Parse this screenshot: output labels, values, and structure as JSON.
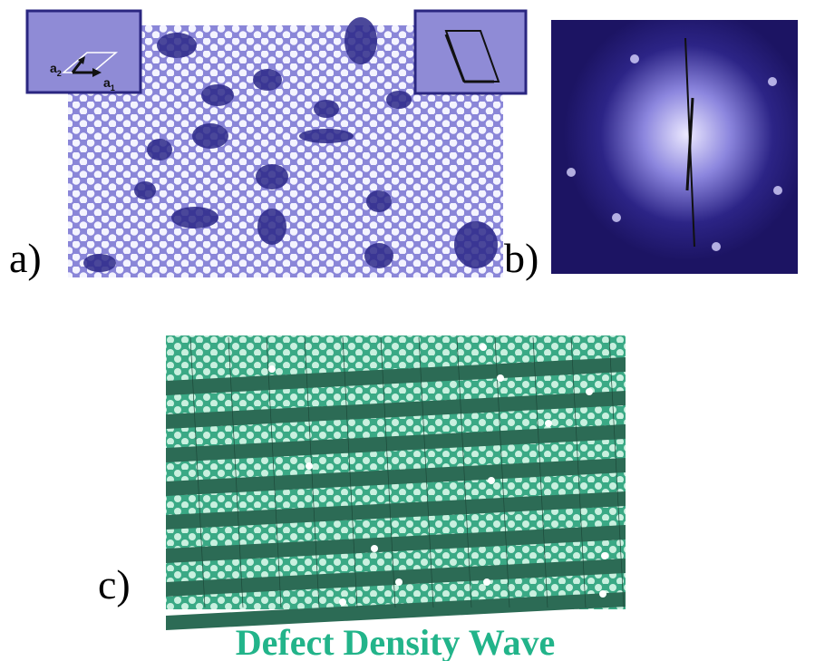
{
  "panels": [
    {
      "label": "a)"
    },
    {
      "label": "b)"
    },
    {
      "label": "c)"
    }
  ],
  "inset": {
    "vectors": [
      {
        "base": "a",
        "sub": "2"
      },
      {
        "base": "a",
        "sub": "1"
      }
    ]
  },
  "caption": "Defect Density Wave"
}
